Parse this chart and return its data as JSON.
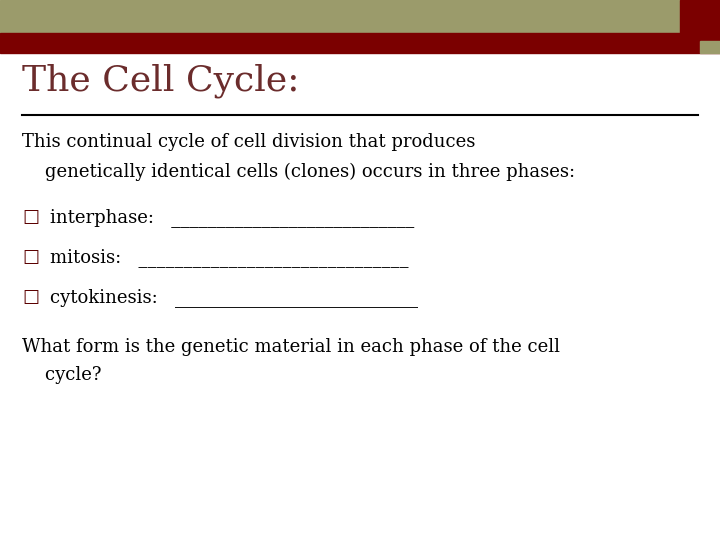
{
  "title": "The Cell Cycle:",
  "title_color": "#6B2C2C",
  "title_fontsize": 26,
  "background_color": "#FFFFFF",
  "header_bar_color": "#9B9B6B",
  "header_red_color": "#7B0000",
  "corner_square_color": "#7B0000",
  "corner_olive_color": "#9B9B6B",
  "line_color": "#000000",
  "text_color": "#000000",
  "body_fontsize": 13,
  "bullet_char": "□",
  "bullet_color": "#5B0000",
  "line1": "This continual cycle of cell division that produces",
  "line2": "    genetically identical cells (clones) occurs in three phases:",
  "bullet1_label": "interphase:   ___________________________",
  "bullet2_label": "mitosis:   ______________________________",
  "bullet3_label": "cytokinesis:   ___________________________",
  "footer_line1": "What form is the genetic material in each phase of the cell",
  "footer_line2": "    cycle?"
}
